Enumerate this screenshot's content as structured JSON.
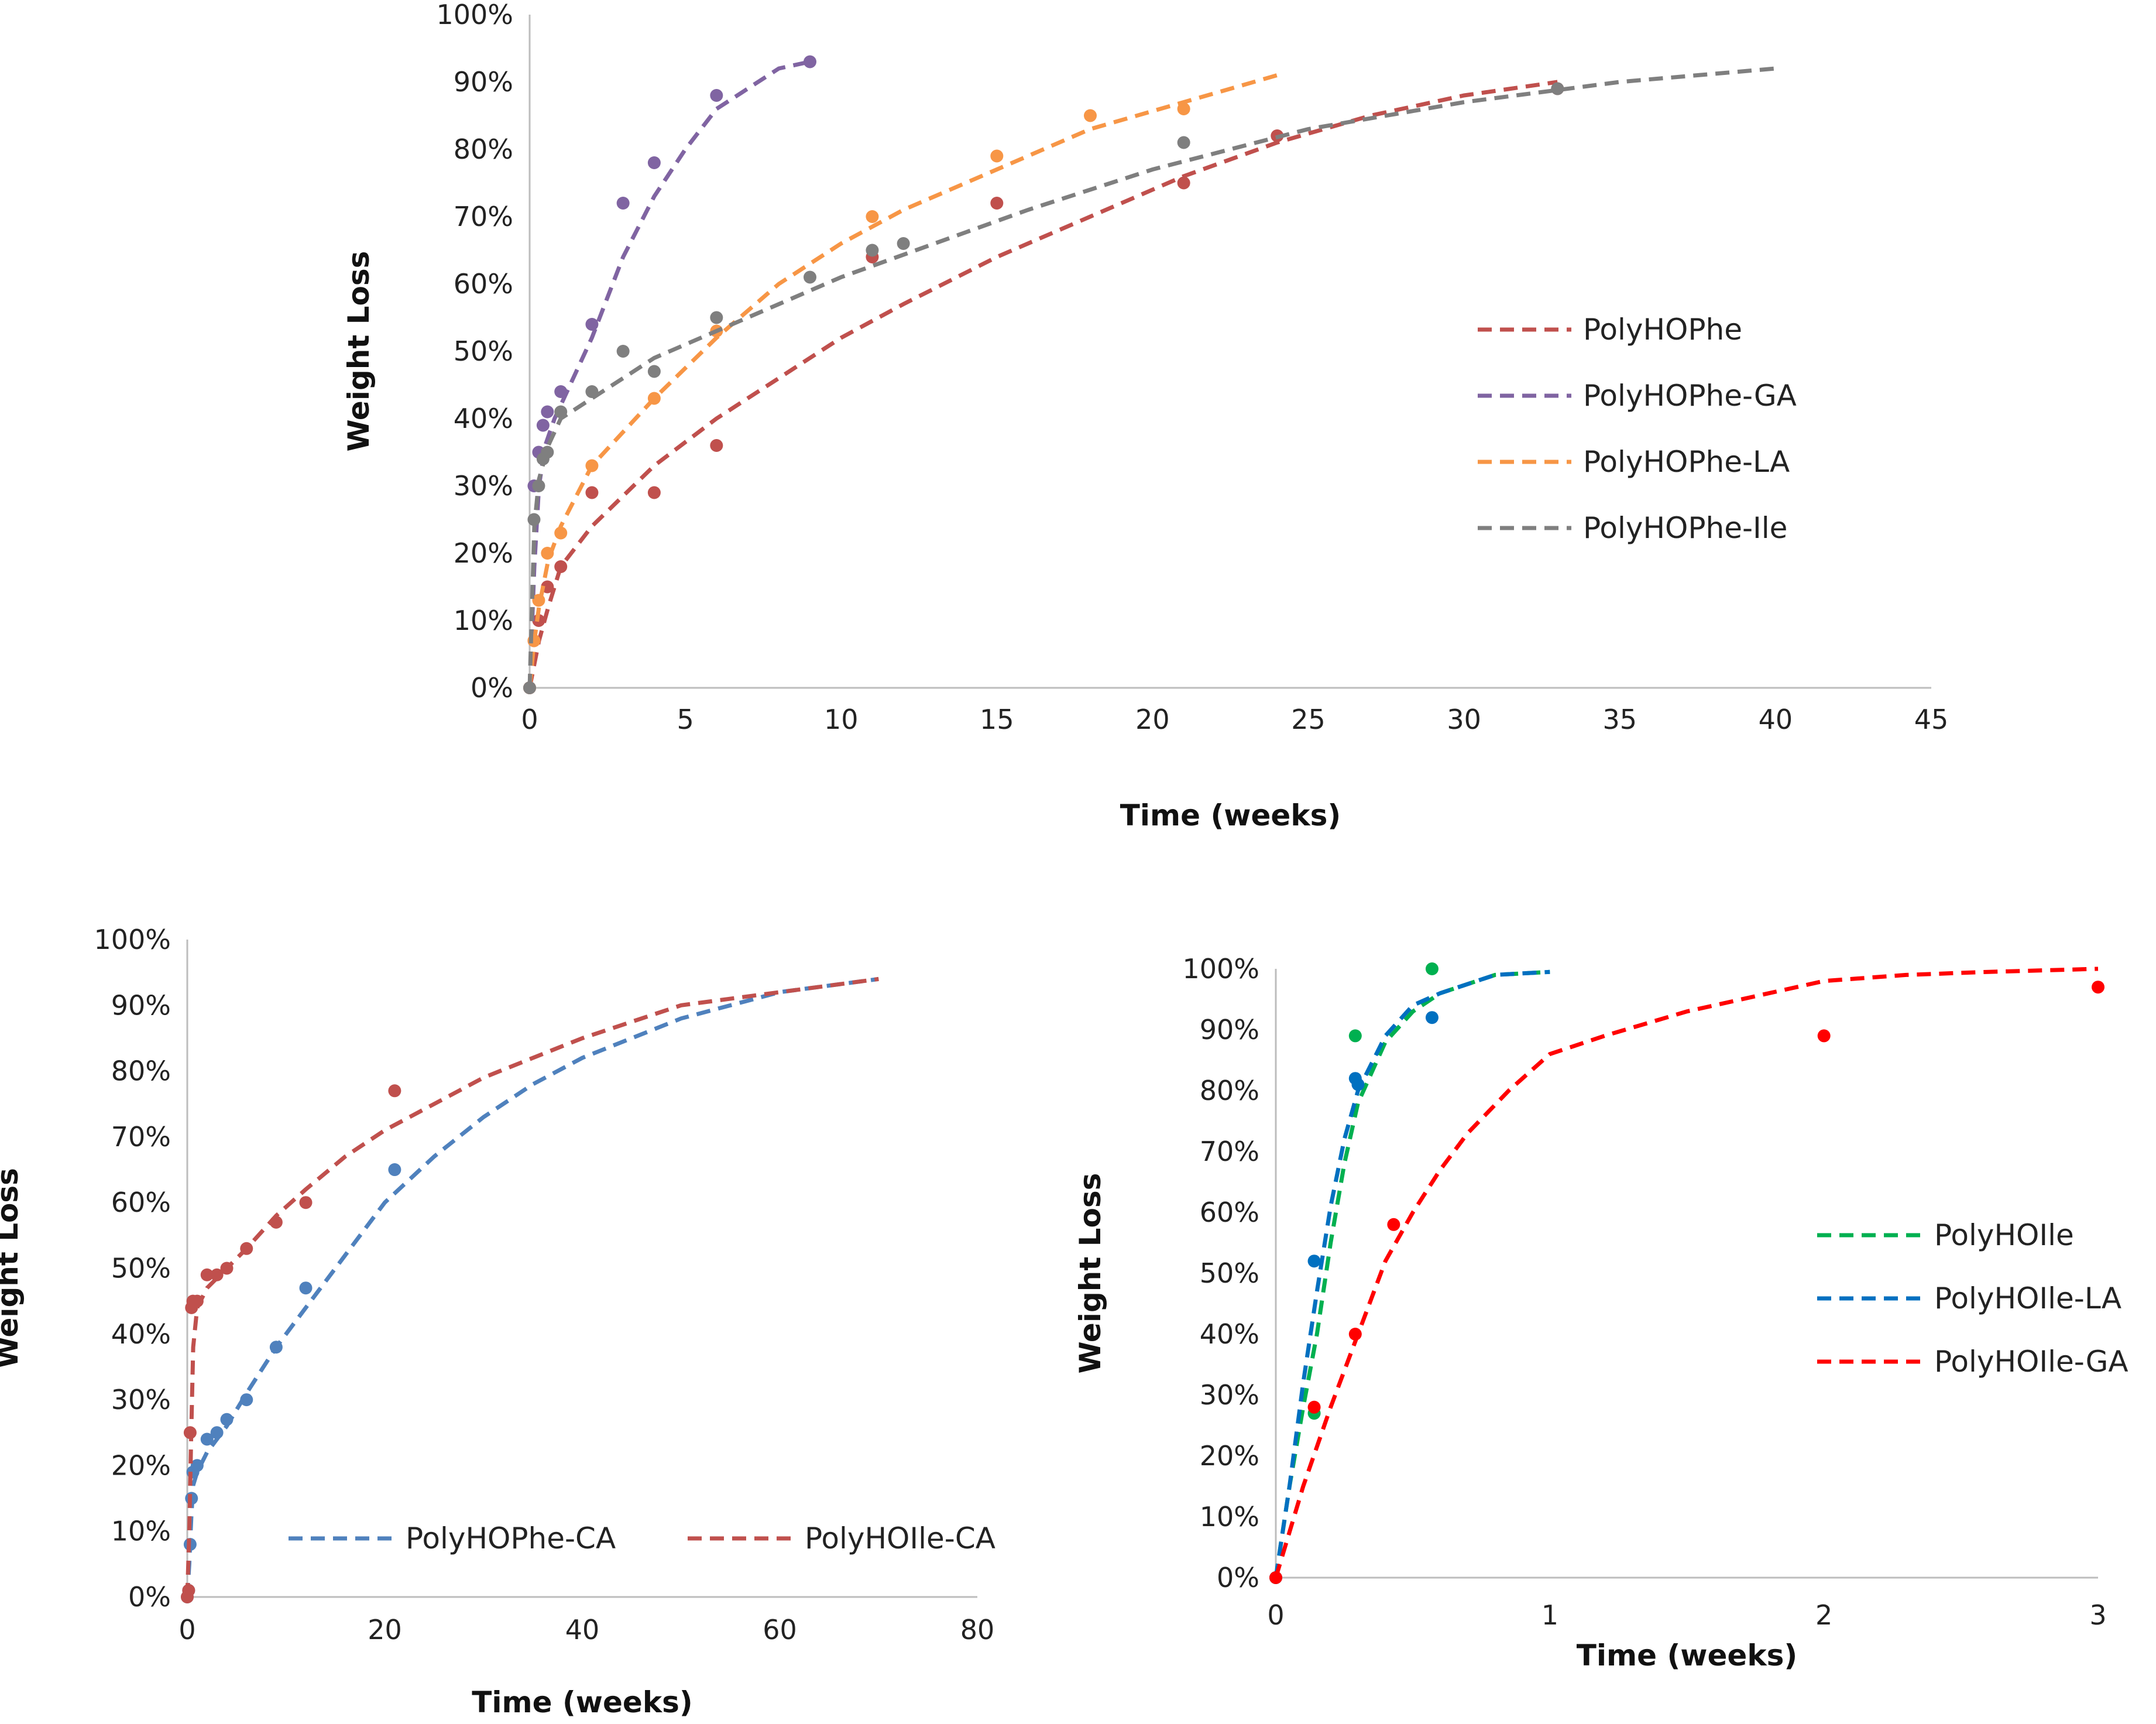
{
  "chart_data": [
    {
      "type": "scatter",
      "title": "",
      "xlabel": "Time (weeks)",
      "ylabel": "Weight Loss",
      "xlim": [
        0,
        45
      ],
      "ylim": [
        0,
        100
      ],
      "xticks": [
        "0",
        "5",
        "10",
        "15",
        "20",
        "25",
        "30",
        "35",
        "40",
        "45"
      ],
      "yticks": [
        "0%",
        "10%",
        "20%",
        "30%",
        "40%",
        "50%",
        "60%",
        "70%",
        "80%",
        "90%",
        "100%"
      ],
      "legend_position": "right",
      "series": [
        {
          "name": "PolyHOPhe",
          "color": "#c0504d",
          "points": [
            [
              0,
              0
            ],
            [
              0.14,
              7
            ],
            [
              0.29,
              10
            ],
            [
              0.57,
              15
            ],
            [
              1,
              18
            ],
            [
              2,
              29
            ],
            [
              4,
              29
            ],
            [
              6,
              36
            ],
            [
              11,
              64
            ],
            [
              15,
              72
            ],
            [
              21,
              75
            ],
            [
              24,
              82
            ],
            [
              33,
              89
            ]
          ],
          "fit": [
            [
              0,
              0
            ],
            [
              0.3,
              7
            ],
            [
              0.6,
              12
            ],
            [
              1,
              18
            ],
            [
              2,
              24
            ],
            [
              4,
              33
            ],
            [
              6,
              40
            ],
            [
              8,
              46
            ],
            [
              10,
              52
            ],
            [
              12,
              57
            ],
            [
              15,
              64
            ],
            [
              18,
              70
            ],
            [
              21,
              76
            ],
            [
              24,
              81
            ],
            [
              27,
              85
            ],
            [
              30,
              88
            ],
            [
              33,
              90
            ]
          ]
        },
        {
          "name": "PolyHOPhe-GA",
          "color": "#8064a2",
          "points": [
            [
              0,
              0
            ],
            [
              0.14,
              30
            ],
            [
              0.29,
              35
            ],
            [
              0.43,
              39
            ],
            [
              0.57,
              41
            ],
            [
              1,
              44
            ],
            [
              2,
              54
            ],
            [
              3,
              72
            ],
            [
              4,
              78
            ],
            [
              6,
              88
            ],
            [
              9,
              93
            ]
          ],
          "fit": [
            [
              0,
              0
            ],
            [
              0.15,
              18
            ],
            [
              0.3,
              30
            ],
            [
              0.5,
              36
            ],
            [
              0.8,
              40
            ],
            [
              1,
              42
            ],
            [
              2,
              52
            ],
            [
              3,
              64
            ],
            [
              4,
              73
            ],
            [
              5,
              80
            ],
            [
              6,
              86
            ],
            [
              7,
              89
            ],
            [
              8,
              92
            ],
            [
              9,
              93
            ]
          ]
        },
        {
          "name": "PolyHOPhe-LA",
          "color": "#f79646",
          "points": [
            [
              0,
              0
            ],
            [
              0.14,
              7
            ],
            [
              0.29,
              13
            ],
            [
              0.57,
              20
            ],
            [
              1,
              23
            ],
            [
              2,
              33
            ],
            [
              4,
              43
            ],
            [
              6,
              53
            ],
            [
              11,
              70
            ],
            [
              15,
              79
            ],
            [
              18,
              85
            ],
            [
              21,
              86
            ]
          ],
          "fit": [
            [
              0,
              0
            ],
            [
              0.15,
              7
            ],
            [
              0.3,
              12
            ],
            [
              0.6,
              19
            ],
            [
              1,
              24
            ],
            [
              2,
              33
            ],
            [
              4,
              43
            ],
            [
              6,
              52
            ],
            [
              8,
              60
            ],
            [
              10,
              66
            ],
            [
              12,
              71
            ],
            [
              15,
              77
            ],
            [
              18,
              83
            ],
            [
              21,
              87
            ],
            [
              24,
              91
            ]
          ]
        },
        {
          "name": "PolyHOPhe-Ile",
          "color": "#7f7f7f",
          "points": [
            [
              0,
              0
            ],
            [
              0.14,
              25
            ],
            [
              0.29,
              30
            ],
            [
              0.43,
              34
            ],
            [
              0.57,
              35
            ],
            [
              1,
              41
            ],
            [
              2,
              44
            ],
            [
              3,
              50
            ],
            [
              4,
              47
            ],
            [
              6,
              55
            ],
            [
              9,
              61
            ],
            [
              11,
              65
            ],
            [
              12,
              66
            ],
            [
              21,
              81
            ],
            [
              33,
              89
            ]
          ],
          "fit": [
            [
              0,
              0
            ],
            [
              0.15,
              24
            ],
            [
              0.3,
              31
            ],
            [
              0.6,
              36
            ],
            [
              1,
              40
            ],
            [
              2,
              43
            ],
            [
              3,
              46
            ],
            [
              4,
              49
            ],
            [
              6,
              53
            ],
            [
              8,
              57
            ],
            [
              10,
              61
            ],
            [
              13,
              66
            ],
            [
              16,
              71
            ],
            [
              20,
              77
            ],
            [
              25,
              83
            ],
            [
              30,
              87
            ],
            [
              35,
              90
            ],
            [
              40,
              92
            ]
          ]
        }
      ]
    },
    {
      "type": "scatter",
      "title": "",
      "xlabel": "Time (weeks)",
      "ylabel": "Weight Loss",
      "xlim": [
        0,
        80
      ],
      "ylim": [
        0,
        100
      ],
      "xticks": [
        "0",
        "20",
        "40",
        "60",
        "80"
      ],
      "yticks": [
        "0%",
        "10%",
        "20%",
        "30%",
        "40%",
        "50%",
        "60%",
        "70%",
        "80%",
        "90%",
        "100%"
      ],
      "legend_position": "bottom",
      "series": [
        {
          "name": "PolyHOPhe-CA",
          "color": "#4f81bd",
          "points": [
            [
              0,
              0
            ],
            [
              0.14,
              1
            ],
            [
              0.29,
              8
            ],
            [
              0.43,
              15
            ],
            [
              0.57,
              19
            ],
            [
              1,
              20
            ],
            [
              2,
              24
            ],
            [
              3,
              25
            ],
            [
              4,
              27
            ],
            [
              6,
              30
            ],
            [
              9,
              38
            ],
            [
              12,
              47
            ],
            [
              21,
              65
            ]
          ],
          "fit": [
            [
              0,
              0
            ],
            [
              0.2,
              5
            ],
            [
              0.4,
              12
            ],
            [
              0.6,
              17
            ],
            [
              1,
              19
            ],
            [
              2,
              22
            ],
            [
              4,
              26
            ],
            [
              6,
              31
            ],
            [
              9,
              38
            ],
            [
              12,
              44
            ],
            [
              16,
              52
            ],
            [
              20,
              60
            ],
            [
              25,
              67
            ],
            [
              30,
              73
            ],
            [
              35,
              78
            ],
            [
              40,
              82
            ],
            [
              50,
              88
            ],
            [
              60,
              92
            ],
            [
              70,
              94
            ]
          ]
        },
        {
          "name": "PolyHOIle-CA",
          "color": "#c0504d",
          "points": [
            [
              0,
              0
            ],
            [
              0.14,
              1
            ],
            [
              0.29,
              25
            ],
            [
              0.43,
              44
            ],
            [
              0.57,
              45
            ],
            [
              1,
              45
            ],
            [
              2,
              49
            ],
            [
              3,
              49
            ],
            [
              4,
              50
            ],
            [
              6,
              53
            ],
            [
              9,
              57
            ],
            [
              12,
              60
            ],
            [
              21,
              77
            ]
          ],
          "fit": [
            [
              0,
              0
            ],
            [
              0.2,
              10
            ],
            [
              0.4,
              25
            ],
            [
              0.6,
              38
            ],
            [
              1,
              44
            ],
            [
              2,
              47
            ],
            [
              4,
              50
            ],
            [
              6,
              53
            ],
            [
              9,
              58
            ],
            [
              12,
              62
            ],
            [
              16,
              67
            ],
            [
              20,
              71
            ],
            [
              25,
              75
            ],
            [
              30,
              79
            ],
            [
              35,
              82
            ],
            [
              40,
              85
            ],
            [
              50,
              90
            ],
            [
              60,
              92
            ],
            [
              70,
              94
            ]
          ]
        }
      ]
    },
    {
      "type": "scatter",
      "title": "",
      "xlabel": "Time (weeks)",
      "ylabel": "Weight Loss",
      "xlim": [
        0,
        3
      ],
      "ylim": [
        0,
        100
      ],
      "xticks": [
        "0",
        "1",
        "2",
        "3"
      ],
      "yticks": [
        "0%",
        "10%",
        "20%",
        "30%",
        "40%",
        "50%",
        "60%",
        "70%",
        "80%",
        "90%",
        "100%"
      ],
      "legend_position": "right",
      "series": [
        {
          "name": "PolyHOIle",
          "color": "#00b050",
          "points": [
            [
              0,
              0
            ],
            [
              0.14,
              27
            ],
            [
              0.29,
              89
            ],
            [
              0.57,
              100
            ]
          ],
          "fit": [
            [
              0,
              0
            ],
            [
              0.05,
              15
            ],
            [
              0.1,
              28
            ],
            [
              0.15,
              40
            ],
            [
              0.2,
              55
            ],
            [
              0.25,
              68
            ],
            [
              0.3,
              78
            ],
            [
              0.4,
              88
            ],
            [
              0.5,
              93
            ],
            [
              0.6,
              96
            ],
            [
              0.8,
              99
            ],
            [
              1,
              99.5
            ]
          ]
        },
        {
          "name": "PolyHOIle-LA",
          "color": "#0070c0",
          "points": [
            [
              0,
              0
            ],
            [
              0.14,
              52
            ],
            [
              0.29,
              82
            ],
            [
              0.3,
              81
            ],
            [
              0.57,
              92
            ]
          ],
          "fit": [
            [
              0,
              0
            ],
            [
              0.05,
              15
            ],
            [
              0.1,
              32
            ],
            [
              0.15,
              47
            ],
            [
              0.2,
              61
            ],
            [
              0.25,
              72
            ],
            [
              0.3,
              80
            ],
            [
              0.4,
              89
            ],
            [
              0.5,
              94
            ],
            [
              0.6,
              96
            ],
            [
              0.8,
              99
            ],
            [
              1,
              99.5
            ]
          ]
        },
        {
          "name": "PolyHOIle-GA",
          "color": "#ff0000",
          "points": [
            [
              0,
              0
            ],
            [
              0.14,
              28
            ],
            [
              0.29,
              40
            ],
            [
              0.43,
              58
            ],
            [
              2,
              89
            ],
            [
              3,
              97
            ]
          ],
          "fit": [
            [
              0,
              0
            ],
            [
              0.1,
              15
            ],
            [
              0.2,
              28
            ],
            [
              0.3,
              40
            ],
            [
              0.4,
              52
            ],
            [
              0.5,
              60
            ],
            [
              0.6,
              67
            ],
            [
              0.7,
              73
            ],
            [
              0.85,
              80
            ],
            [
              1,
              86
            ],
            [
              1.2,
              89
            ],
            [
              1.5,
              93
            ],
            [
              1.8,
              96
            ],
            [
              2,
              98
            ],
            [
              2.3,
              99
            ],
            [
              2.6,
              99.5
            ],
            [
              3,
              100
            ]
          ]
        }
      ]
    }
  ]
}
